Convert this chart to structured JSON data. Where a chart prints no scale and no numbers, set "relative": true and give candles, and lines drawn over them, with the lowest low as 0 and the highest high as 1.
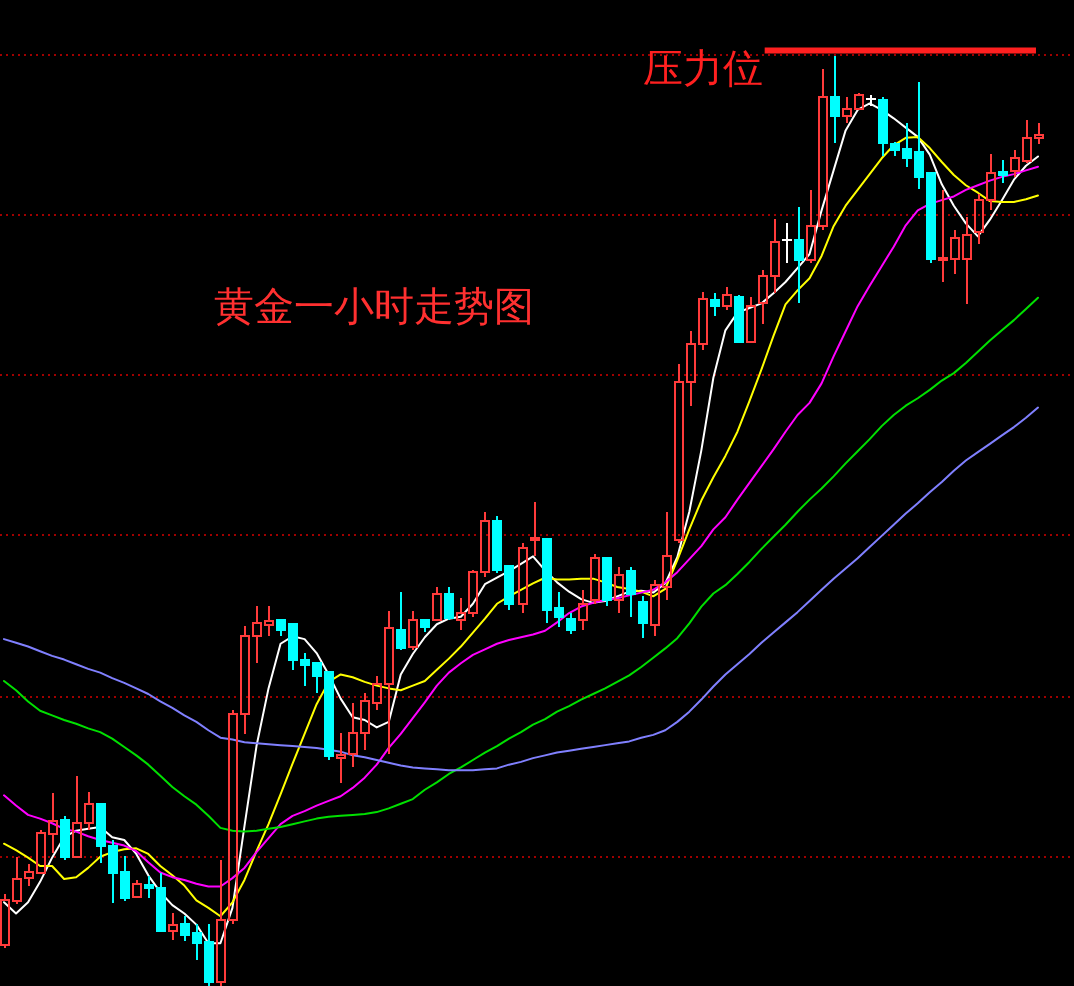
{
  "chart_data": {
    "type": "candlestick",
    "title": "黄金一小时走势图",
    "relative": true,
    "categories": [
      null,
      null,
      null,
      null,
      null,
      null,
      null,
      null,
      null,
      null,
      null,
      null,
      null,
      null,
      null,
      null,
      null,
      null,
      null,
      null,
      null,
      null,
      null,
      null,
      null,
      null,
      null,
      null,
      null,
      null,
      null,
      null,
      null,
      null,
      null,
      null,
      null,
      null,
      null,
      null,
      null,
      null,
      null,
      null,
      null,
      null,
      null,
      null,
      null,
      null,
      null,
      null,
      null,
      null,
      null,
      null,
      null,
      null,
      null,
      null,
      null,
      null,
      null,
      null,
      null,
      null,
      null,
      null,
      null,
      null,
      null,
      null,
      null,
      null,
      null,
      null,
      null,
      null,
      null,
      null,
      null,
      null,
      null,
      null,
      null,
      null,
      null
    ],
    "ohlc": [
      [
        0.044,
        0.099,
        0.041,
        0.092
      ],
      [
        0.091,
        0.139,
        0.088,
        0.115
      ],
      [
        0.116,
        0.131,
        0.108,
        0.123
      ],
      [
        0.121,
        0.168,
        0.12,
        0.164
      ],
      [
        0.163,
        0.207,
        0.143,
        0.177
      ],
      [
        0.178,
        0.183,
        0.135,
        0.139
      ],
      [
        0.139,
        0.226,
        0.139,
        0.175
      ],
      [
        0.175,
        0.209,
        0.168,
        0.196
      ],
      [
        0.196,
        0.196,
        0.132,
        0.151
      ],
      [
        0.151,
        0.157,
        0.089,
        0.121
      ],
      [
        0.123,
        0.14,
        0.091,
        0.095
      ],
      [
        0.096,
        0.114,
        0.095,
        0.11
      ],
      [
        0.109,
        0.118,
        0.095,
        0.105
      ],
      [
        0.105,
        0.121,
        0.059,
        0.059
      ],
      [
        0.059,
        0.078,
        0.049,
        0.066
      ],
      [
        0.067,
        0.075,
        0.048,
        0.055
      ],
      [
        0.057,
        0.067,
        0.028,
        0.046
      ],
      [
        0.047,
        0.067,
        0,
        0.004
      ],
      [
        0.004,
        0.135,
        0,
        0.071
      ],
      [
        0.071,
        0.297,
        0.067,
        0.292
      ],
      [
        0.292,
        0.387,
        0.271,
        0.376
      ],
      [
        0.376,
        0.409,
        0.347,
        0.39
      ],
      [
        0.388,
        0.409,
        0.376,
        0.392
      ],
      [
        0.394,
        0.394,
        0.376,
        0.383
      ],
      [
        0.389,
        0.389,
        0.34,
        0.351
      ],
      [
        0.351,
        0.358,
        0.323,
        0.345
      ],
      [
        0.347,
        0.347,
        0.315,
        0.333
      ],
      [
        0.338,
        0.338,
        0.243,
        0.247
      ],
      [
        0.245,
        0.272,
        0.218,
        0.248
      ],
      [
        0.25,
        0.304,
        0.236,
        0.272
      ],
      [
        0.272,
        0.315,
        0.254,
        0.306
      ],
      [
        0.304,
        0.333,
        0.297,
        0.325
      ],
      [
        0.325,
        0.403,
        0.25,
        0.385
      ],
      [
        0.383,
        0.424,
        0.361,
        0.363
      ],
      [
        0.365,
        0.403,
        0.361,
        0.394
      ],
      [
        0.394,
        0.394,
        0.381,
        0.386
      ],
      [
        0.394,
        0.429,
        0.392,
        0.421
      ],
      [
        0.421,
        0.429,
        0.394,
        0.396
      ],
      [
        0.394,
        0.417,
        0.383,
        0.401
      ],
      [
        0.401,
        0.447,
        0.397,
        0.445
      ],
      [
        0.445,
        0.51,
        0.44,
        0.5
      ],
      [
        0.5,
        0.505,
        0.444,
        0.447
      ],
      [
        0.452,
        0.452,
        0.404,
        0.411
      ],
      [
        0.411,
        0.476,
        0.401,
        0.471
      ],
      [
        0.48,
        0.52,
        0.462,
        0.482
      ],
      [
        0.481,
        0.481,
        0.39,
        0.404
      ],
      [
        0.406,
        0.424,
        0.386,
        0.397
      ],
      [
        0.395,
        0.401,
        0.379,
        0.383
      ],
      [
        0.394,
        0.426,
        0.383,
        0.411
      ],
      [
        0.415,
        0.465,
        0.411,
        0.46
      ],
      [
        0.46,
        0.46,
        0.409,
        0.415
      ],
      [
        0.415,
        0.451,
        0.401,
        0.442
      ],
      [
        0.446,
        0.451,
        0.397,
        0.422
      ],
      [
        0.413,
        0.419,
        0.374,
        0.39
      ],
      [
        0.388,
        0.437,
        0.376,
        0.431
      ],
      [
        0.429,
        0.51,
        0.415,
        0.462
      ],
      [
        0.48,
        0.669,
        0.476,
        0.649
      ],
      [
        0.65,
        0.704,
        0.624,
        0.69
      ],
      [
        0.69,
        0.746,
        0.684,
        0.739
      ],
      [
        0.738,
        0.745,
        0.72,
        0.731
      ],
      [
        0.731,
        0.752,
        0.727,
        0.743
      ],
      [
        0.741,
        0.743,
        0.691,
        0.693
      ],
      [
        0.693,
        0.741,
        0.691,
        0.731
      ],
      [
        0.734,
        0.77,
        0.712,
        0.763
      ],
      [
        0.763,
        0.825,
        0.745,
        0.8
      ],
      [
        0.802,
        0.82,
        0.777,
        0.802
      ],
      [
        0.802,
        0.838,
        0.734,
        0.781
      ],
      [
        0.781,
        0.856,
        0.777,
        0.817
      ],
      [
        0.817,
        0.986,
        0.813,
        0.956
      ],
      [
        0.956,
        1,
        0.906,
        0.935
      ],
      [
        0.935,
        0.956,
        0.928,
        0.943
      ],
      [
        0.943,
        0.96,
        0.942,
        0.958
      ],
      [
        0.954,
        0.958,
        0.946,
        0.954
      ],
      [
        0.953,
        0.956,
        0.893,
        0.906
      ],
      [
        0.905,
        0.908,
        0.892,
        0.899
      ],
      [
        0.9,
        0.928,
        0.881,
        0.89
      ],
      [
        0.897,
        0.972,
        0.857,
        0.87
      ],
      [
        0.874,
        0.874,
        0.777,
        0.782
      ],
      [
        0.781,
        0.856,
        0.757,
        0.783
      ],
      [
        0.782,
        0.813,
        0.766,
        0.804
      ],
      [
        0.782,
        0.827,
        0.733,
        0.808
      ],
      [
        0.811,
        0.852,
        0.798,
        0.845
      ],
      [
        0.845,
        0.895,
        0.834,
        0.874
      ],
      [
        0.875,
        0.888,
        0.863,
        0.872
      ],
      [
        0.876,
        0.899,
        0.87,
        0.89
      ],
      [
        0.887,
        0.931,
        0.885,
        0.912
      ],
      [
        0.912,
        0.928,
        0.905,
        0.915
      ]
    ],
    "series": [
      {
        "type": "line",
        "color": "#ffffff",
        "values": [
          0.09,
          0.078,
          0.09,
          0.112,
          0.138,
          0.16,
          0.167,
          0.169,
          0.171,
          0.16,
          0.157,
          0.142,
          0.119,
          0.101,
          0.087,
          0.078,
          0.066,
          0.046,
          0.046,
          0.084,
          0.172,
          0.258,
          0.32,
          0.368,
          0.376,
          0.373,
          0.358,
          0.335,
          0.309,
          0.289,
          0.286,
          0.278,
          0.284,
          0.335,
          0.357,
          0.375,
          0.389,
          0.395,
          0.397,
          0.411,
          0.432,
          0.439,
          0.446,
          0.454,
          0.462,
          0.447,
          0.434,
          0.424,
          0.416,
          0.412,
          0.414,
          0.419,
          0.424,
          0.425,
          0.423,
          0.433,
          0.461,
          0.51,
          0.576,
          0.654,
          0.705,
          0.724,
          0.729,
          0.734,
          0.745,
          0.757,
          0.772,
          0.787,
          0.834,
          0.877,
          0.92,
          0.942,
          0.949,
          0.942,
          0.933,
          0.923,
          0.913,
          0.894,
          0.862,
          0.839,
          0.82,
          0.806,
          0.824,
          0.845,
          0.867,
          0.882,
          0.892
        ]
      },
      {
        "type": "line",
        "color": "#ffff00",
        "values": [
          0.153,
          0.146,
          0.138,
          0.129,
          0.129,
          0.115,
          0.117,
          0.127,
          0.139,
          0.144,
          0.147,
          0.148,
          0.142,
          0.129,
          0.119,
          0.108,
          0.092,
          0.084,
          0.075,
          0.09,
          0.114,
          0.145,
          0.174,
          0.206,
          0.239,
          0.271,
          0.303,
          0.327,
          0.335,
          0.332,
          0.327,
          0.323,
          0.32,
          0.318,
          0.323,
          0.328,
          0.34,
          0.352,
          0.365,
          0.38,
          0.395,
          0.411,
          0.419,
          0.426,
          0.433,
          0.439,
          0.437,
          0.437,
          0.438,
          0.438,
          0.434,
          0.429,
          0.427,
          0.424,
          0.419,
          0.427,
          0.458,
          0.491,
          0.522,
          0.547,
          0.57,
          0.596,
          0.629,
          0.663,
          0.699,
          0.733,
          0.748,
          0.761,
          0.785,
          0.817,
          0.839,
          0.856,
          0.873,
          0.89,
          0.904,
          0.912,
          0.913,
          0.901,
          0.886,
          0.872,
          0.861,
          0.853,
          0.844,
          0.843,
          0.843,
          0.846,
          0.85
        ]
      },
      {
        "type": "line",
        "color": "#ff00ff",
        "values": [
          0.205,
          0.194,
          0.184,
          0.18,
          0.175,
          0.169,
          0.166,
          0.161,
          0.157,
          0.154,
          0.151,
          0.145,
          0.133,
          0.122,
          0.117,
          0.114,
          0.11,
          0.107,
          0.107,
          0.116,
          0.127,
          0.144,
          0.159,
          0.174,
          0.183,
          0.188,
          0.194,
          0.199,
          0.204,
          0.213,
          0.224,
          0.238,
          0.256,
          0.271,
          0.288,
          0.305,
          0.323,
          0.337,
          0.347,
          0.356,
          0.362,
          0.368,
          0.372,
          0.375,
          0.378,
          0.382,
          0.391,
          0.401,
          0.408,
          0.412,
          0.415,
          0.417,
          0.42,
          0.423,
          0.426,
          0.434,
          0.445,
          0.459,
          0.473,
          0.491,
          0.504,
          0.523,
          0.541,
          0.559,
          0.577,
          0.596,
          0.614,
          0.627,
          0.648,
          0.677,
          0.704,
          0.731,
          0.753,
          0.774,
          0.795,
          0.818,
          0.834,
          0.841,
          0.845,
          0.849,
          0.856,
          0.861,
          0.866,
          0.87,
          0.873,
          0.877,
          0.881
        ]
      },
      {
        "type": "line",
        "color": "#00e000",
        "values": [
          0.328,
          0.318,
          0.306,
          0.296,
          0.291,
          0.286,
          0.282,
          0.277,
          0.273,
          0.266,
          0.257,
          0.248,
          0.238,
          0.226,
          0.214,
          0.204,
          0.195,
          0.183,
          0.17,
          0.167,
          0.166,
          0.167,
          0.169,
          0.171,
          0.174,
          0.177,
          0.18,
          0.182,
          0.183,
          0.184,
          0.185,
          0.187,
          0.191,
          0.196,
          0.201,
          0.211,
          0.219,
          0.228,
          0.235,
          0.243,
          0.251,
          0.258,
          0.266,
          0.273,
          0.281,
          0.287,
          0.295,
          0.301,
          0.308,
          0.314,
          0.32,
          0.327,
          0.334,
          0.343,
          0.353,
          0.363,
          0.374,
          0.39,
          0.408,
          0.422,
          0.431,
          0.443,
          0.456,
          0.47,
          0.483,
          0.496,
          0.51,
          0.523,
          0.535,
          0.548,
          0.562,
          0.575,
          0.588,
          0.602,
          0.614,
          0.624,
          0.632,
          0.641,
          0.651,
          0.659,
          0.67,
          0.682,
          0.694,
          0.705,
          0.716,
          0.728,
          0.74
        ]
      },
      {
        "type": "line",
        "color": "#8080ff",
        "values": [
          0.373,
          0.369,
          0.365,
          0.36,
          0.355,
          0.351,
          0.346,
          0.341,
          0.337,
          0.331,
          0.326,
          0.32,
          0.314,
          0.306,
          0.299,
          0.291,
          0.284,
          0.275,
          0.267,
          0.265,
          0.262,
          0.261,
          0.26,
          0.259,
          0.258,
          0.257,
          0.256,
          0.254,
          0.252,
          0.248,
          0.246,
          0.243,
          0.24,
          0.237,
          0.235,
          0.234,
          0.233,
          0.232,
          0.232,
          0.232,
          0.233,
          0.234,
          0.238,
          0.241,
          0.245,
          0.248,
          0.251,
          0.253,
          0.255,
          0.257,
          0.259,
          0.261,
          0.263,
          0.267,
          0.27,
          0.275,
          0.284,
          0.295,
          0.308,
          0.322,
          0.335,
          0.346,
          0.357,
          0.369,
          0.38,
          0.391,
          0.402,
          0.414,
          0.426,
          0.438,
          0.449,
          0.46,
          0.472,
          0.484,
          0.496,
          0.508,
          0.519,
          0.531,
          0.542,
          0.554,
          0.565,
          0.574,
          0.583,
          0.592,
          0.601,
          0.611,
          0.622
        ]
      }
    ],
    "ref_lines": [
      {
        "axis": "y",
        "value": 0.14,
        "color": "#a00000",
        "line_style": "dotted"
      },
      {
        "axis": "y",
        "value": 0.312,
        "color": "#a00000",
        "line_style": "dotted"
      },
      {
        "axis": "y",
        "value": 0.485,
        "color": "#a00000",
        "line_style": "dotted"
      },
      {
        "axis": "y",
        "value": 0.657,
        "color": "#a00000",
        "line_style": "dotted"
      },
      {
        "axis": "y",
        "value": 0.83,
        "color": "#a00000",
        "line_style": "dotted"
      },
      {
        "axis": "y",
        "value": 1.002,
        "color": "#a00000",
        "line_style": "dotted"
      },
      {
        "axis": "y",
        "value": 1.006,
        "label": "压力位",
        "color": "#ff2020",
        "line_style": "solid"
      }
    ]
  }
}
